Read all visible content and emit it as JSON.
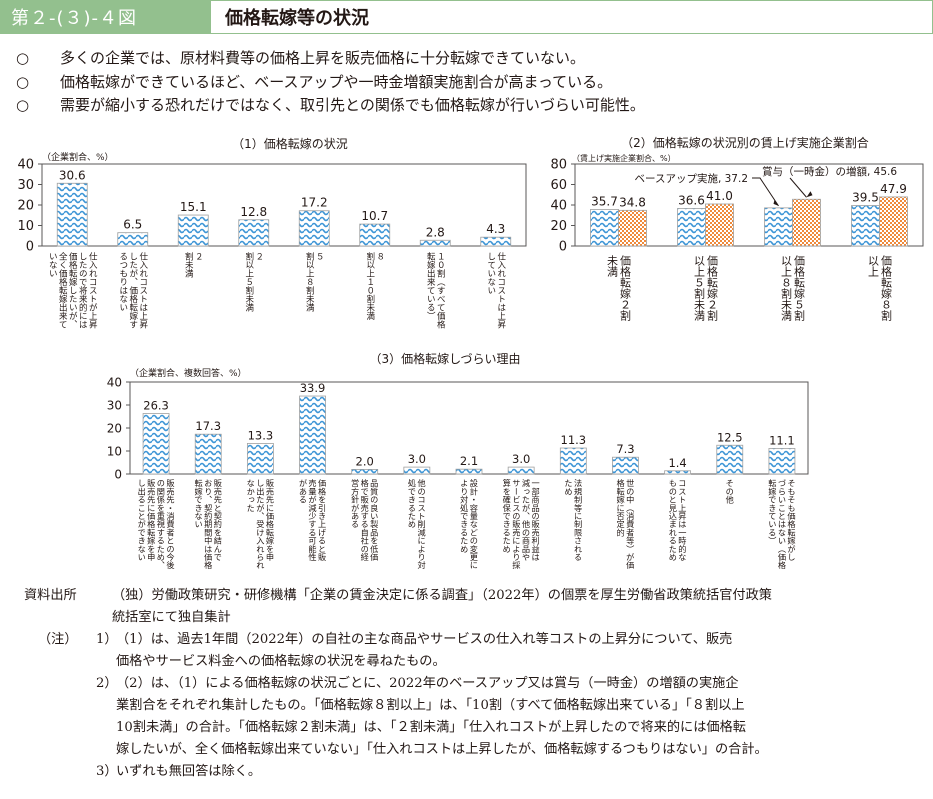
{
  "header": {
    "figure_number": "第２-(３)-４図",
    "title": "価格転嫁等の状況"
  },
  "bullets": [
    {
      "mark": "○",
      "text": "多くの企業では、原材料費等の価格上昇を販売価格に十分転嫁できていない。"
    },
    {
      "mark": "○",
      "text": "価格転嫁ができているほど、ベースアップや一時金増額実施割合が高まっている。"
    },
    {
      "mark": "○",
      "text": "需要が縮小する恐れだけではなく、取引先との関係でも価格転嫁が行いづらい可能性。"
    }
  ],
  "chart_data": [
    {
      "type": "bar",
      "title": "（1）価格転嫁の状況",
      "ylabel": "（企業割合、%）",
      "xlabel": "",
      "ylim": [
        0,
        40
      ],
      "yticks": [
        0,
        10,
        20,
        30,
        40
      ],
      "grid": false,
      "categories": [
        "仕入れコストが上昇したので将来的には価格転嫁したいが、全く価格転嫁出来ていない",
        "仕入れコストは上昇したが、価格転嫁するつもりはない",
        "２割未満",
        "２割以上５割未満",
        "５割以上８割未満",
        "８割以上１０割未満",
        "１０割（すべて価格転嫁出来ている）",
        "仕入れコストは上昇していない"
      ],
      "label_lines": [
        [
          "仕入れコストが上昇",
          "したので将来的には",
          "価格転嫁したいが、",
          "全く価格転嫁出来て",
          "いない"
        ],
        [
          "仕入れコストは上昇",
          "したが、価格転嫁す",
          "るつもりはない"
        ],
        [
          "２",
          "割未満"
        ],
        [
          "２",
          "割以上５割未満"
        ],
        [
          "５",
          "割以上８割未満"
        ],
        [
          "８",
          "割以上１０割未満"
        ],
        [
          "１０割（すべて価格",
          "転嫁出来ている）"
        ],
        [
          "仕入れコストは上昇",
          "していない"
        ]
      ],
      "values": [
        30.6,
        6.5,
        15.1,
        12.8,
        17.2,
        10.7,
        2.8,
        4.3
      ],
      "value_labels": [
        "30.6",
        "6.5",
        "15.1",
        "12.8",
        "17.2",
        "10.7",
        "2.8",
        "4.3"
      ],
      "series_color": "#4a9fd8"
    },
    {
      "type": "bar",
      "title": "（2）価格転嫁の状況別の賃上げ実施企業割合",
      "ylabel": "（賃上げ実施企業割合、%）",
      "xlabel": "",
      "ylim": [
        0,
        80
      ],
      "yticks": [
        0,
        20,
        40,
        60,
        80
      ],
      "grid": false,
      "categories": [
        "価格転嫁２割未満",
        "価格転嫁２割以上５割未満",
        "価格転嫁５割以上８割未満",
        "価格転嫁８割以上"
      ],
      "label_lines": [
        [
          "価格転嫁２割",
          "未満"
        ],
        [
          "価格転嫁２割",
          "以上５割未満"
        ],
        [
          "価格転嫁５割",
          "以上８割未満"
        ],
        [
          "価格転嫁８割",
          "以上"
        ]
      ],
      "series": [
        {
          "name": "ベースアップ実施",
          "values": [
            35.7,
            36.6,
            37.2,
            39.5
          ],
          "value_labels": [
            "35.7",
            "36.6",
            "",
            "39.5"
          ],
          "color": "#4a9fd8"
        },
        {
          "name": "賞与（一時金）の増額",
          "values": [
            34.8,
            41.0,
            45.6,
            47.9
          ],
          "value_labels": [
            "34.8",
            "41.0",
            "",
            "47.9"
          ],
          "color": "#f08a3a"
        }
      ],
      "annotations": [
        {
          "text": "ベースアップ実施, 37.2",
          "series": 0,
          "category": 2
        },
        {
          "text": "賞与（一時金）の増額, 45.6",
          "series": 1,
          "category": 2
        }
      ]
    },
    {
      "type": "bar",
      "title": "（3）価格転嫁しづらい理由",
      "ylabel": "（企業割合、複数回答、%）",
      "xlabel": "",
      "ylim": [
        0,
        40
      ],
      "yticks": [
        0,
        10,
        20,
        30,
        40
      ],
      "grid": false,
      "categories": [
        "販売先・消費者との今後の関係を重視するため、販売先に価格転嫁を申し出ることができない",
        "販売先と契約を結んでおり、契約期間中は価格転嫁できない",
        "販売先に価格転嫁を申し出たが、受け入れられなかった",
        "価格を引き上げると販売量が減少する可能性がある",
        "品質の良い製品を低価格で販売する自社の経営方針がある",
        "他のコスト削減により対処できるため",
        "設計・容量などの変更により対処できるため",
        "一部商品の販売利益は減ったが、他の商品やサービスの販売により採算を確保できるため",
        "法規制等に制限されるため",
        "世の中（消費者等）が価格転嫁に否定的",
        "コスト上昇は一時的なものと見込まれるため",
        "その他",
        "そもそも価格転嫁がしづらいことはない（価格転嫁できている）"
      ],
      "label_lines": [
        [
          "販売先・消費者との今後",
          "の関係を重視するため、",
          "販売先に価格転嫁を申",
          "し出ることができない"
        ],
        [
          "販売先と契約を結んで",
          "おり、契約期間中は価格",
          "転嫁できない"
        ],
        [
          "販売先に価格転嫁を申",
          "し出たが、受け入れられ",
          "なかった"
        ],
        [
          "価格を引き上げると販",
          "売量が減少する可能性",
          "がある"
        ],
        [
          "品質の良い製品を低価",
          "格で販売する自社の経",
          "営方針がある"
        ],
        [
          "他のコスト削減により対",
          "処できるため"
        ],
        [
          "設計・容量などの変更に",
          "より対処できるため"
        ],
        [
          "一部商品の販売利益は",
          "減ったが、他の商品や",
          "サービスの販売により採",
          "算を確保できるため"
        ],
        [
          "法規制等に制限される",
          "ため"
        ],
        [
          "世の中（消費者等）が価",
          "格転嫁に否定的"
        ],
        [
          "コスト上昇は一時的な",
          "ものと見込まれるため"
        ],
        [
          "その他"
        ],
        [
          "そもそも価格転嫁がし",
          "づらいことはない（価格",
          "転嫁できている）"
        ]
      ],
      "values": [
        26.3,
        17.3,
        13.3,
        33.9,
        2.0,
        3.0,
        2.1,
        3.0,
        11.3,
        7.3,
        1.4,
        12.5,
        11.1
      ],
      "value_labels": [
        "26.3",
        "17.3",
        "13.3",
        "33.9",
        "2.0",
        "3.0",
        "2.1",
        "3.0",
        "11.3",
        "7.3",
        "1.4",
        "12.5",
        "11.1"
      ],
      "series_color": "#4a9fd8"
    }
  ],
  "notes": {
    "source_label": "資料出所",
    "source_lines": [
      "（独）労働政策研究・研修機構「企業の賃金決定に係る調査」（2022年）の個票を厚生労働省政策統括官付政策",
      "統括室にて独自集計"
    ],
    "notes_label": "（注）",
    "items": [
      {
        "num": "1）",
        "lines": [
          "（1）は、過去1年間（2022年）の自社の主な商品やサービスの仕入れ等コストの上昇分について、販売",
          "価格やサービス料金への価格転嫁の状況を尋ねたもの。"
        ]
      },
      {
        "num": "2）",
        "lines": [
          "（2）は、（1）による価格転嫁の状況ごとに、2022年のベースアップ又は賞与（一時金）の増額の実施企",
          "業割合をそれぞれ集計したもの。「価格転嫁８割以上」は、「10割（すべて価格転嫁出来ている」「８割以上",
          "10割未満」の合計。「価格転嫁２割未満」は、「２割未満」「仕入れコストが上昇したので将来的には価格転",
          "嫁したいが、全く価格転嫁出来ていない」「仕入れコストは上昇したが、価格転嫁するつもりはない」の合計。"
        ]
      },
      {
        "num": "3）",
        "lines": [
          "いずれも無回答は除く。"
        ]
      }
    ]
  }
}
